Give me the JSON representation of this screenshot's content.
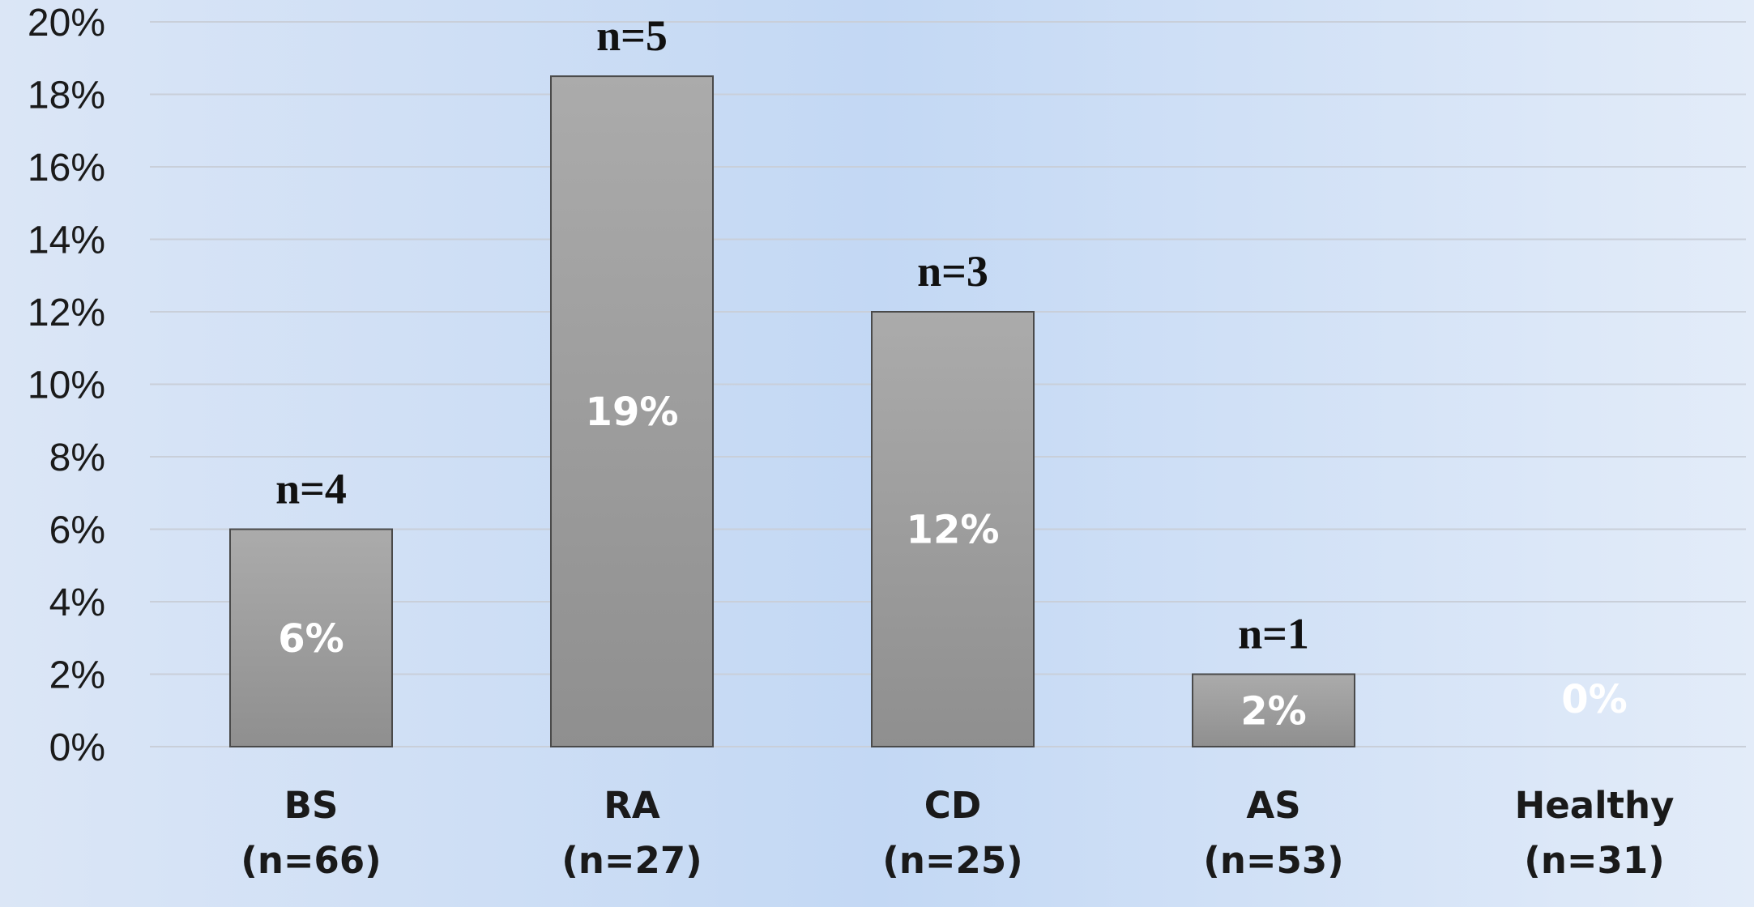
{
  "chart_data": {
    "type": "bar",
    "categories": [
      "BS",
      "RA",
      "CD",
      "AS",
      "Healthy"
    ],
    "category_groups": [
      "(n=66)",
      "(n=27)",
      "(n=25)",
      "(n=53)",
      "(n=31)"
    ],
    "values": [
      6,
      18.5,
      12,
      2,
      0
    ],
    "value_labels": [
      "6%",
      "19%",
      "12%",
      "2%",
      "0%"
    ],
    "count_labels": [
      "n=4",
      "n=5",
      "n=3",
      "n=1",
      ""
    ],
    "yticks": [
      "0%",
      "2%",
      "4%",
      "6%",
      "8%",
      "10%",
      "12%",
      "14%",
      "16%",
      "18%",
      "20%"
    ],
    "ylim": [
      0,
      20
    ],
    "grid": true,
    "title": "",
    "xlabel": "",
    "ylabel": "",
    "colors": {
      "background_left": "#dbe6f6",
      "background_mid": "#c3d8f4",
      "background_right": "#e3ecf9",
      "bar_top": "#ababab",
      "bar_bottom": "#8f8f8f",
      "bar_stroke": "#4a4a4a",
      "gridline": "#c9cfd9",
      "value_label": "#ffffff"
    }
  }
}
